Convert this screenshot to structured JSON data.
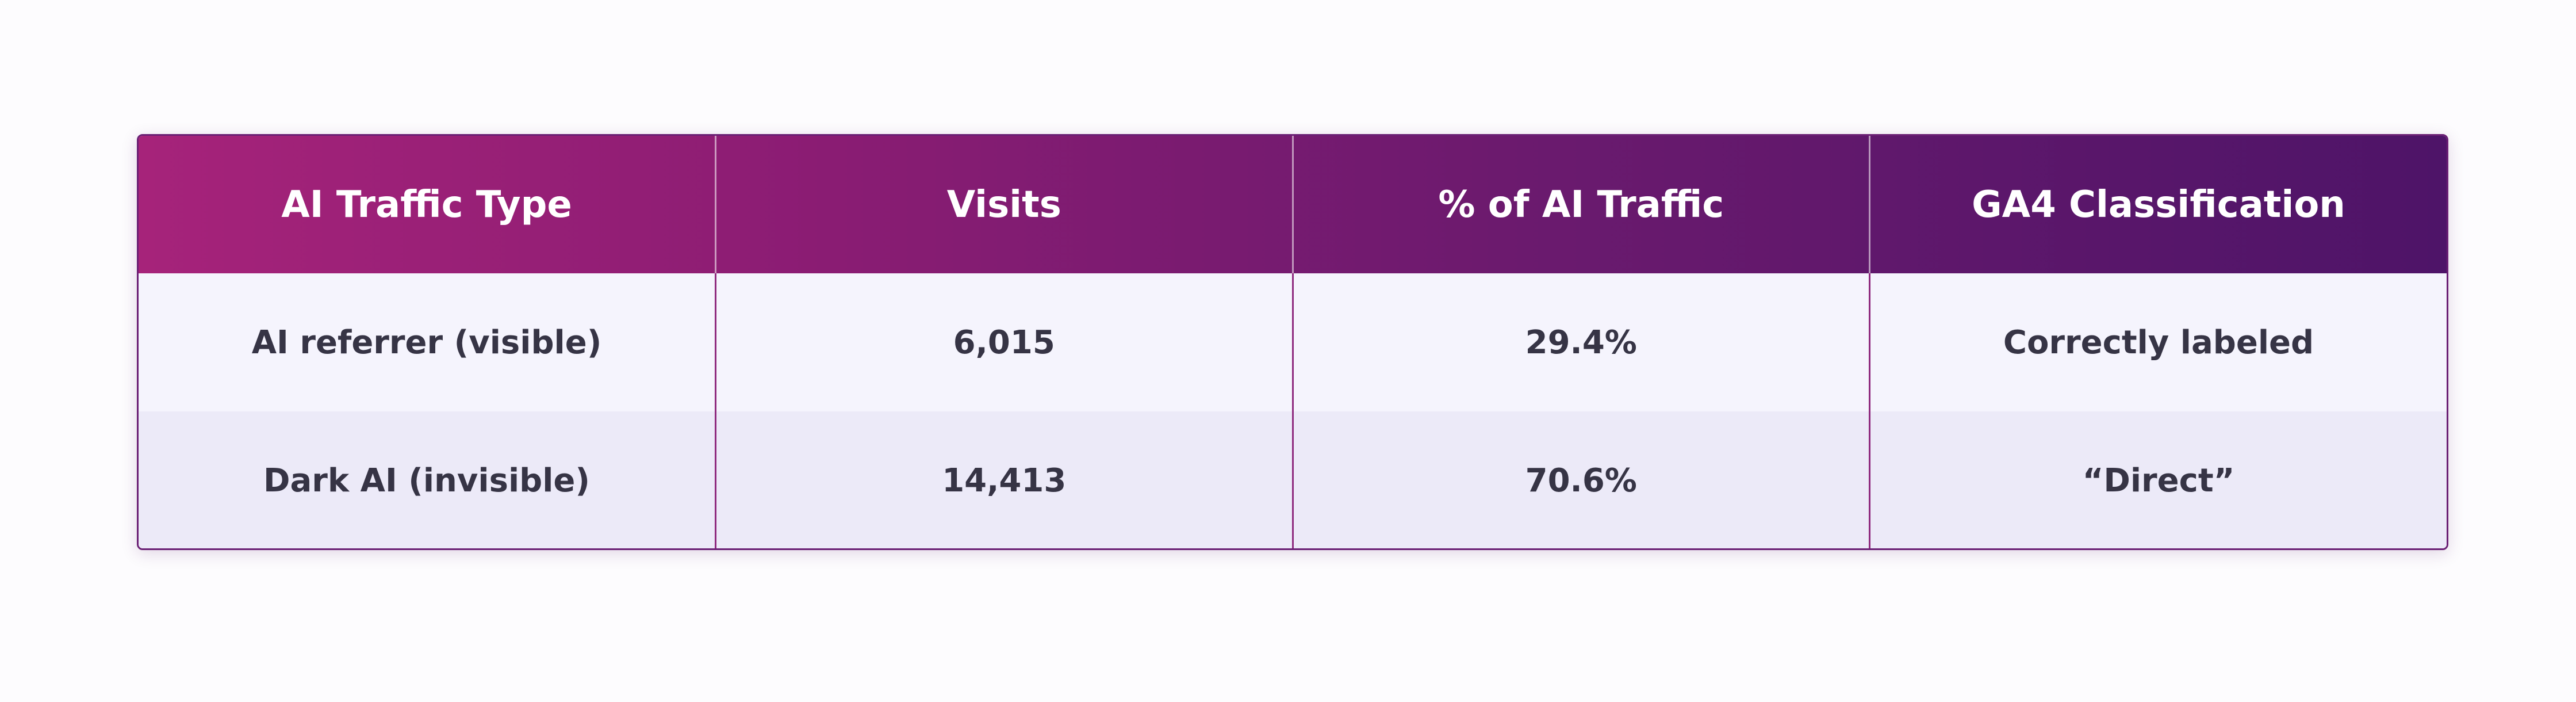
{
  "table": {
    "headers": [
      "AI Traffic Type",
      "Visits",
      "% of AI Traffic",
      "GA4 Classification"
    ],
    "rows": [
      [
        "AI referrer (visible)",
        "6,015",
        "29.4%",
        "Correctly labeled"
      ],
      [
        "Dark AI (invisible)",
        "14,413",
        "70.6%",
        "“Direct”"
      ]
    ]
  },
  "colors": {
    "header_gradient_start": "#a6237a",
    "header_gradient_end": "#4e1468",
    "row_light": "#f5f4fd",
    "row_alt": "#eceaf8",
    "text": "#363445"
  }
}
